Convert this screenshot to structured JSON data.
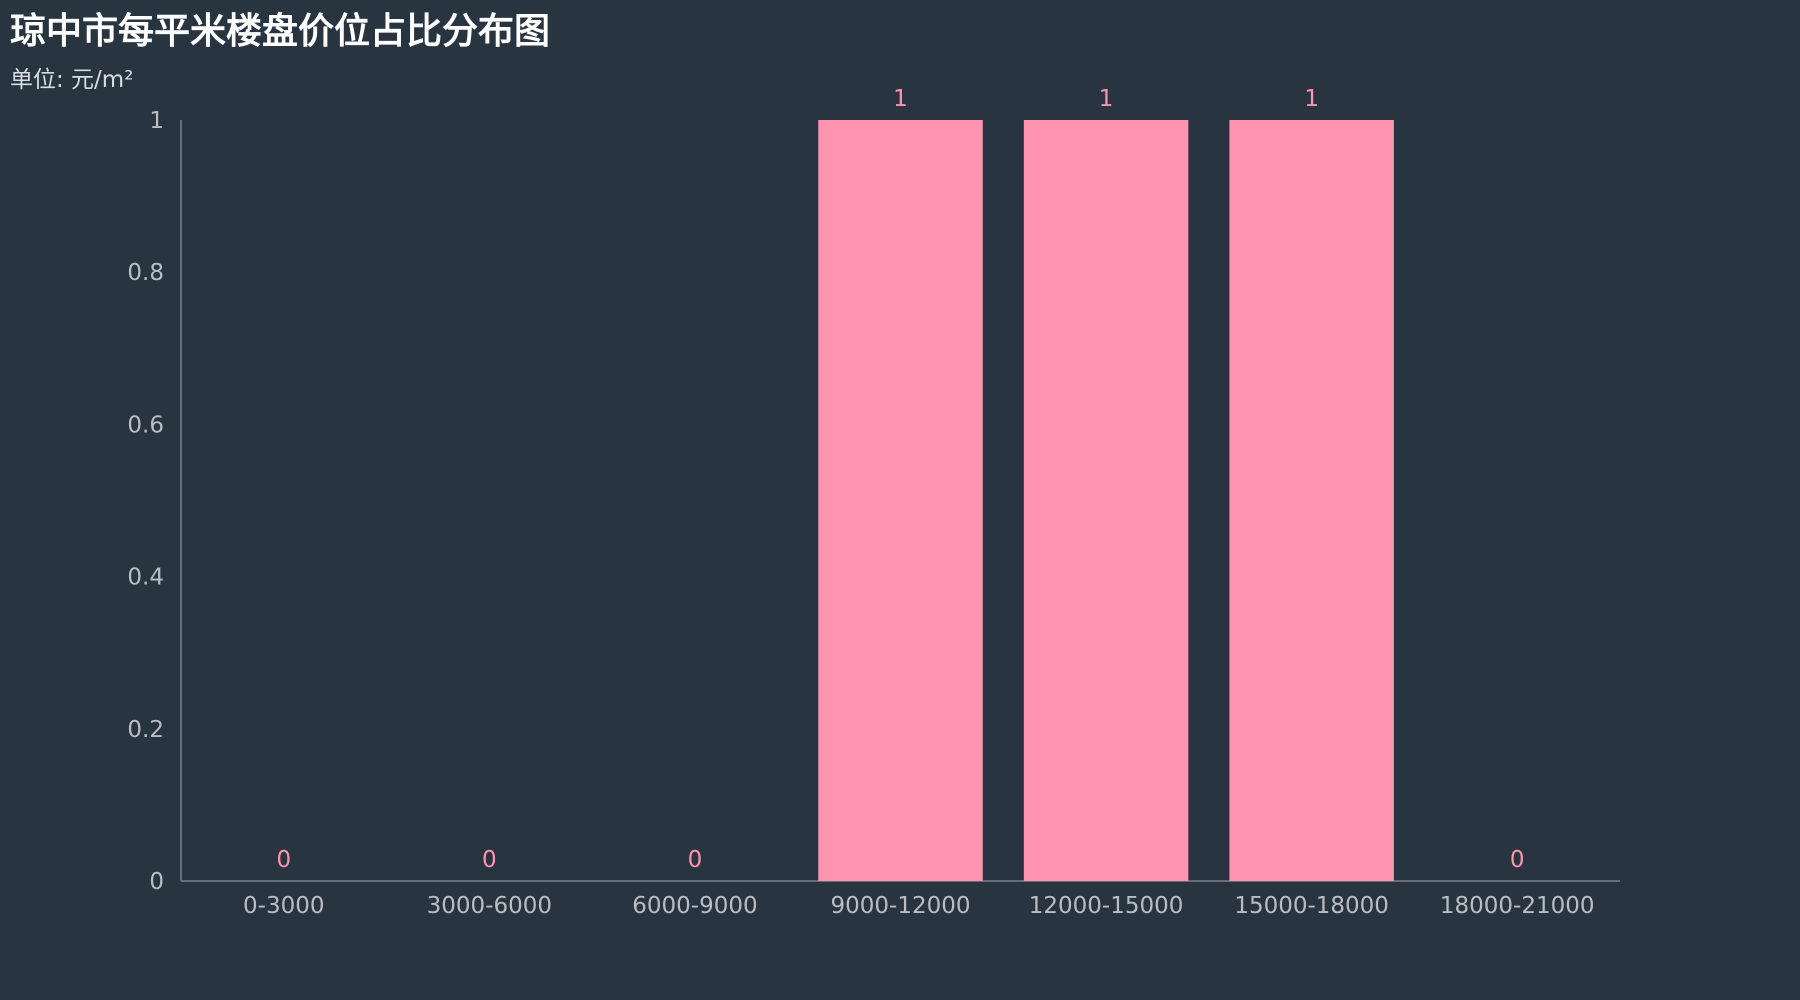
{
  "chart_data": {
    "type": "bar",
    "title": "琼中市每平米楼盘价位占比分布图",
    "subtitle": "单位: 元/m²",
    "categories": [
      "0-3000",
      "3000-6000",
      "6000-9000",
      "9000-12000",
      "12000-15000",
      "15000-18000",
      "18000-21000"
    ],
    "values": [
      0,
      0,
      0,
      1,
      1,
      1,
      0
    ],
    "ylim": [
      0,
      1
    ],
    "yticks": [
      "0",
      "0.2",
      "0.4",
      "0.6",
      "0.8",
      "1"
    ],
    "grid": false,
    "colors": {
      "background": "#283440",
      "bar": "#ff94b0",
      "data_label": "#ff94b0",
      "axis_line": "#7a8088",
      "tick_label": "#b9bec4",
      "title": "#ffffff"
    }
  }
}
